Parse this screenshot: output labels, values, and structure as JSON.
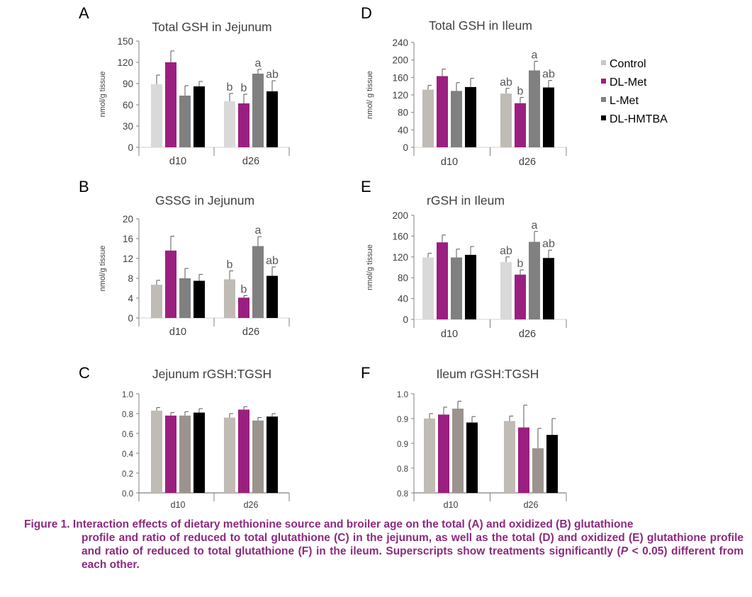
{
  "legend": {
    "items": [
      {
        "label": "Control",
        "color": "#c8c8c8"
      },
      {
        "label": "DL-Met",
        "color": "#9b1f80"
      },
      {
        "label": "L-Met",
        "color": "#808080"
      },
      {
        "label": "DL-HMTBA",
        "color": "#000000"
      }
    ]
  },
  "caption": {
    "label": "Figure 1.",
    "line1": "Interaction effects of dietary methionine source and broiler age on the total (A) and oxidized (B) glutathione",
    "line2": "profile and ratio of reduced to total glutathione (C) in the jejunum, as well as the total (D) and oxidized (E) glutathione profile and ratio of reduced to total glutathione (F) in the ileum. Superscripts show treatments significantly (",
    "p_symbol": "P",
    "line2_end": " < 0.05) different from each other."
  },
  "chart_data": [
    {
      "panel": "A",
      "type": "bar",
      "title": "Total GSH in Jejunum",
      "ylabel": "nmol/g tissue",
      "categories": [
        "d10",
        "d26"
      ],
      "yticks": [
        "0",
        "30",
        "60",
        "90",
        "120",
        "150"
      ],
      "ylim": [
        0,
        150
      ],
      "colors": [
        "#d9d9d9",
        "#9b1f80",
        "#808080",
        "#000000"
      ],
      "series": [
        {
          "name": "Control",
          "values": [
            89,
            65
          ],
          "errors": [
            13,
            11
          ],
          "letters": [
            "",
            "b"
          ]
        },
        {
          "name": "DL-Met",
          "values": [
            120,
            62
          ],
          "errors": [
            16,
            13
          ],
          "letters": [
            "",
            "b"
          ]
        },
        {
          "name": "L-Met",
          "values": [
            73,
            104
          ],
          "errors": [
            14,
            6
          ],
          "letters": [
            "",
            "a"
          ]
        },
        {
          "name": "DL-HMTBA",
          "values": [
            86,
            79
          ],
          "errors": [
            7,
            15
          ],
          "letters": [
            "",
            "ab"
          ]
        }
      ]
    },
    {
      "panel": "B",
      "type": "bar",
      "title": "GSSG in Jejunum",
      "ylabel": "nmol/g tissue",
      "categories": [
        "d10",
        "d26"
      ],
      "yticks": [
        "0",
        "4",
        "8",
        "12",
        "16",
        "20"
      ],
      "ylim": [
        0,
        20
      ],
      "colors": [
        "#c0bbb5",
        "#9b1f80",
        "#808080",
        "#000000"
      ],
      "series": [
        {
          "name": "Control",
          "values": [
            6.7,
            7.8
          ],
          "errors": [
            0.9,
            1.7
          ],
          "letters": [
            "",
            "b"
          ]
        },
        {
          "name": "DL-Met",
          "values": [
            13.6,
            4.1
          ],
          "errors": [
            2.9,
            0.4
          ],
          "letters": [
            "",
            "b"
          ]
        },
        {
          "name": "L-Met",
          "values": [
            8.0,
            14.5
          ],
          "errors": [
            2.0,
            1.9
          ],
          "letters": [
            "",
            "a"
          ]
        },
        {
          "name": "DL-HMTBA",
          "values": [
            7.5,
            8.5
          ],
          "errors": [
            1.3,
            1.8
          ],
          "letters": [
            "",
            "ab"
          ]
        }
      ]
    },
    {
      "panel": "C",
      "type": "bar",
      "title": "Jejunum rGSH:TGSH",
      "ylabel": "",
      "categories": [
        "d10",
        "d26"
      ],
      "yticks": [
        "0.0",
        "0.2",
        "0.4",
        "0.6",
        "0.8",
        "1.0"
      ],
      "ylim": [
        0,
        1.0
      ],
      "colors": [
        "#c0bbb5",
        "#9b1f80",
        "#9b948e",
        "#000000"
      ],
      "series": [
        {
          "name": "Control",
          "values": [
            0.83,
            0.76
          ],
          "errors": [
            0.03,
            0.04
          ],
          "letters": [
            "",
            ""
          ]
        },
        {
          "name": "DL-Met",
          "values": [
            0.78,
            0.84
          ],
          "errors": [
            0.03,
            0.03
          ],
          "letters": [
            "",
            ""
          ]
        },
        {
          "name": "L-Met",
          "values": [
            0.78,
            0.73
          ],
          "errors": [
            0.04,
            0.03
          ],
          "letters": [
            "",
            ""
          ]
        },
        {
          "name": "DL-HMTBA",
          "values": [
            0.81,
            0.77
          ],
          "errors": [
            0.04,
            0.03
          ],
          "letters": [
            "",
            ""
          ]
        }
      ]
    },
    {
      "panel": "D",
      "type": "bar",
      "title": "Total GSH in Ileum",
      "ylabel": "nmol/ g tissue",
      "categories": [
        "d10",
        "d26"
      ],
      "yticks": [
        "0",
        "40",
        "80",
        "120",
        "160",
        "200",
        "240"
      ],
      "ylim": [
        0,
        240
      ],
      "colors": [
        "#c0bbb5",
        "#9b1f80",
        "#808080",
        "#000000"
      ],
      "series": [
        {
          "name": "Control",
          "values": [
            132,
            123
          ],
          "errors": [
            10,
            12
          ],
          "letters": [
            "",
            "ab"
          ]
        },
        {
          "name": "DL-Met",
          "values": [
            163,
            101
          ],
          "errors": [
            16,
            13
          ],
          "letters": [
            "",
            "b"
          ]
        },
        {
          "name": "L-Met",
          "values": [
            129,
            176
          ],
          "errors": [
            19,
            21
          ],
          "letters": [
            "",
            "a"
          ]
        },
        {
          "name": "DL-HMTBA",
          "values": [
            138,
            137
          ],
          "errors": [
            20,
            16
          ],
          "letters": [
            "",
            "ab"
          ]
        }
      ]
    },
    {
      "panel": "E",
      "type": "bar",
      "title": "rGSH in Ileum",
      "ylabel": "nmol/g tissue",
      "categories": [
        "d10",
        "d26"
      ],
      "yticks": [
        "0",
        "40",
        "80",
        "120",
        "160",
        "200"
      ],
      "ylim": [
        0,
        200
      ],
      "colors": [
        "#d9d9d9",
        "#9b1f80",
        "#808080",
        "#000000"
      ],
      "series": [
        {
          "name": "Control",
          "values": [
            119,
            110
          ],
          "errors": [
            8,
            10
          ],
          "letters": [
            "",
            "ab"
          ]
        },
        {
          "name": "DL-Met",
          "values": [
            148,
            86
          ],
          "errors": [
            14,
            9
          ],
          "letters": [
            "",
            "b"
          ]
        },
        {
          "name": "L-Met",
          "values": [
            119,
            149
          ],
          "errors": [
            16,
            20
          ],
          "letters": [
            "",
            "a"
          ]
        },
        {
          "name": "DL-HMTBA",
          "values": [
            124,
            118
          ],
          "errors": [
            16,
            15
          ],
          "letters": [
            "",
            "ab"
          ]
        }
      ]
    },
    {
      "panel": "F",
      "type": "bar",
      "title": "Ileum rGSH:TGSH",
      "ylabel": "",
      "categories": [
        "d10",
        "d26"
      ],
      "yticks": [
        "0.8",
        "0.8",
        "0.9",
        "0.9",
        "1.0"
      ],
      "ylim": [
        0.8,
        1.0
      ],
      "colors": [
        "#c0bbb5",
        "#9b1f80",
        "#9b948e",
        "#000000"
      ],
      "series": [
        {
          "name": "Control",
          "values": [
            0.95,
            0.945
          ],
          "errors": [
            0.01,
            0.01
          ],
          "letters": [
            "",
            ""
          ]
        },
        {
          "name": "DL-Met",
          "values": [
            0.958,
            0.932
          ],
          "errors": [
            0.015,
            0.045
          ],
          "letters": [
            "",
            ""
          ]
        },
        {
          "name": "L-Met",
          "values": [
            0.97,
            0.89
          ],
          "errors": [
            0.015,
            0.04
          ],
          "letters": [
            "",
            ""
          ]
        },
        {
          "name": "DL-HMTBA",
          "values": [
            0.942,
            0.917
          ],
          "errors": [
            0.012,
            0.033
          ],
          "letters": [
            "",
            ""
          ]
        }
      ]
    }
  ]
}
